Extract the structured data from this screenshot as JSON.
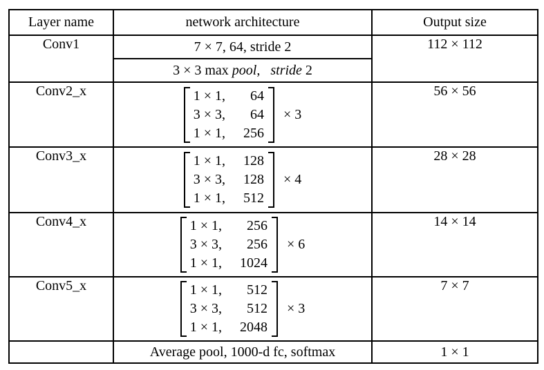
{
  "colors": {
    "border": "#000000",
    "text": "#000000",
    "background": "#ffffff"
  },
  "table": {
    "headers": {
      "layer": "Layer name",
      "arch": "network architecture",
      "output": "Output size"
    },
    "conv1": {
      "layer": "Conv1",
      "output": "112 × 112",
      "line1": "7 × 7, 64, stride 2",
      "line2_parts": [
        {
          "text": "3 × 3 max ",
          "italic": false
        },
        {
          "text": "pool",
          "italic": true
        },
        {
          "text": ",  ",
          "italic": false
        },
        {
          "text": "stride",
          "italic": true
        },
        {
          "text": " 2",
          "italic": false
        }
      ]
    },
    "conv2": {
      "layer": "Conv2_x",
      "output": "56 × 56",
      "multiplier": "× 3",
      "matrix": [
        [
          "1 × 1,",
          "64"
        ],
        [
          "3 × 3,",
          "64"
        ],
        [
          "1 × 1,",
          "256"
        ]
      ]
    },
    "conv3": {
      "layer": "Conv3_x",
      "output": "28 × 28",
      "multiplier": "× 4",
      "matrix": [
        [
          "1 × 1,",
          "128"
        ],
        [
          "3 × 3,",
          "128"
        ],
        [
          "1 × 1,",
          "512"
        ]
      ]
    },
    "conv4": {
      "layer": "Conv4_x",
      "output": "14 × 14",
      "multiplier": "× 6",
      "matrix": [
        [
          "1 × 1,",
          "256"
        ],
        [
          "3 × 3,",
          "256"
        ],
        [
          "1 × 1,",
          "1024"
        ]
      ]
    },
    "conv5": {
      "layer": "Conv5_x",
      "output": "7 × 7",
      "multiplier": "× 3",
      "matrix": [
        [
          "1 × 1,",
          "512"
        ],
        [
          "3 × 3,",
          "512"
        ],
        [
          "1 × 1,",
          "2048"
        ]
      ]
    },
    "final": {
      "layer": "",
      "arch": "Average pool, 1000-d fc, softmax",
      "output": "1 × 1"
    }
  }
}
